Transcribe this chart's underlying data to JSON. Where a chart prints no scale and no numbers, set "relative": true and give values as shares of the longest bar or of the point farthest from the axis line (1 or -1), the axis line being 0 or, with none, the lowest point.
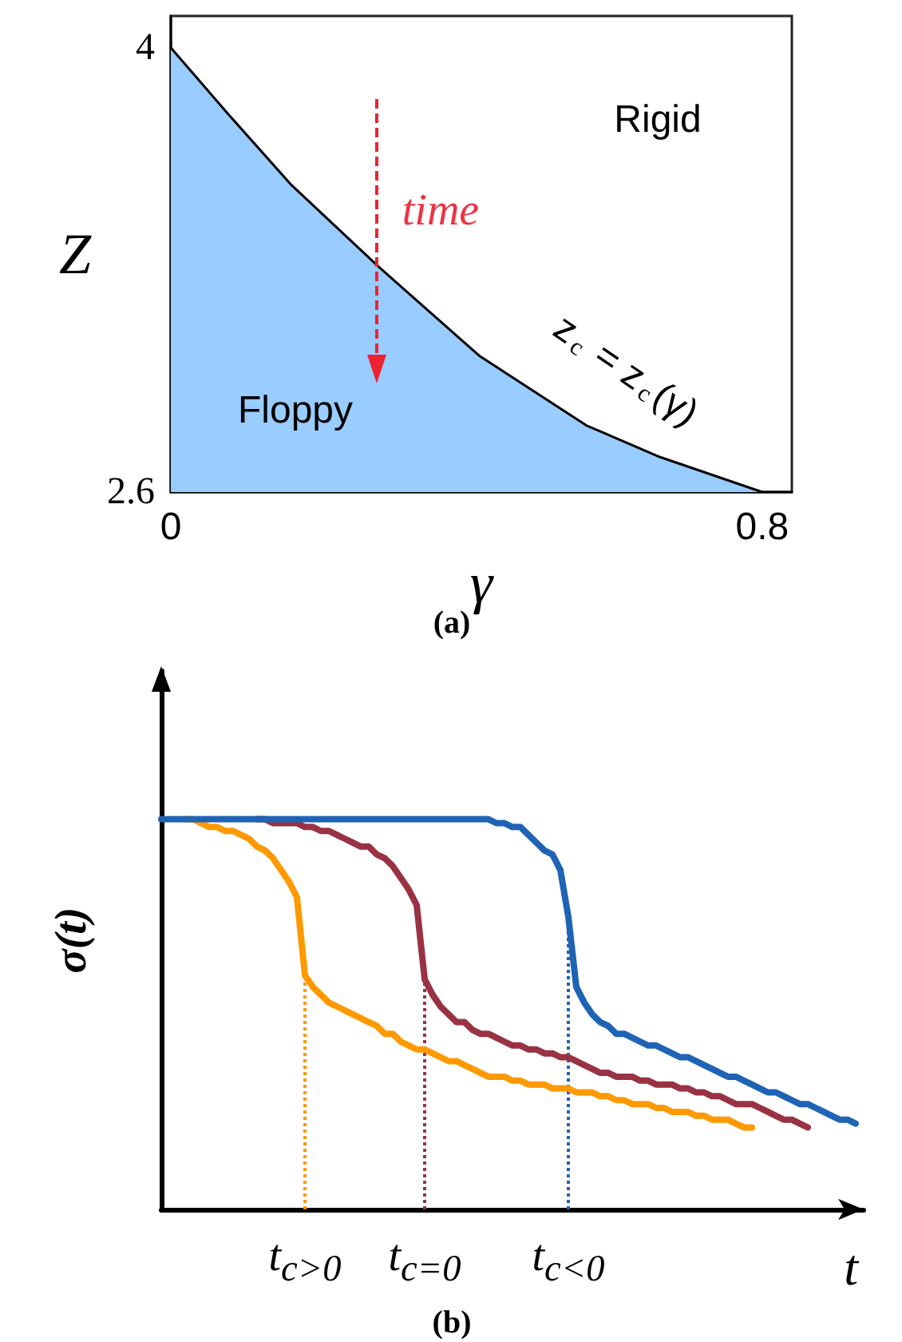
{
  "chart_data": [
    {
      "type": "area",
      "xlabel": "γ",
      "ylabel": "Z",
      "x": [
        0,
        0.078,
        0.162,
        0.281,
        0.417,
        0.562,
        0.662,
        0.8
      ],
      "series": [
        {
          "color": "#99ccff",
          "values": [
            4,
            3.79,
            3.57,
            3.31,
            3.03,
            2.81,
            2.71,
            2.6
          ]
        }
      ],
      "xlim": [
        0,
        0.84
      ],
      "ylim": [
        2.6,
        4.1
      ],
      "xticks": [
        0,
        0.8
      ],
      "yticks": [
        2.6,
        4
      ],
      "annotations": [
        "Rigid",
        "Floppy",
        "time",
        "z$_{c}$ = z$_{c}$(γ)",
        "(a)"
      ]
    },
    {
      "type": "line",
      "relative": true,
      "xlabel": "t",
      "ylabel": "σ(t)",
      "categories": [
        null,
        null,
        null,
        null,
        null,
        null,
        null,
        null,
        null,
        null,
        null,
        null,
        null,
        null,
        null,
        null,
        null,
        null,
        "t$_{c>0}$",
        null,
        null,
        null,
        null,
        null,
        null,
        null,
        null,
        null,
        null,
        null,
        null,
        null,
        null,
        "t$_{c=0}$",
        null,
        null,
        null,
        null,
        null,
        null,
        null,
        null,
        null,
        null,
        null,
        null,
        null,
        null,
        null,
        null,
        null,
        "t$_{c<0}$",
        null,
        null,
        null,
        null,
        null,
        null,
        null,
        null,
        null,
        null,
        null,
        null,
        null,
        null,
        null,
        null,
        null,
        null,
        null,
        null,
        null,
        null,
        null,
        null,
        null,
        null,
        null,
        null,
        null,
        null,
        null,
        null,
        null,
        null,
        null,
        null,
        null
      ],
      "series": [
        {
          "color": "#ff9900",
          "values": [
            null,
            null,
            null,
            1,
            1,
            0.99,
            0.98,
            0.98,
            0.97,
            0.97,
            0.96,
            0.95,
            0.93,
            0.92,
            0.9,
            0.87,
            0.84,
            0.8,
            0.6,
            0.57,
            0.55,
            0.53,
            0.52,
            0.51,
            0.5,
            0.49,
            0.48,
            0.47,
            0.45,
            0.45,
            0.43,
            0.42,
            0.41,
            0.41,
            0.4,
            0.39,
            0.38,
            0.38,
            0.37,
            0.36,
            0.35,
            0.34,
            0.34,
            0.34,
            0.33,
            0.33,
            0.32,
            0.32,
            0.32,
            0.31,
            0.31,
            0.31,
            0.3,
            0.3,
            0.3,
            0.29,
            0.29,
            0.28,
            0.28,
            0.27,
            0.27,
            0.27,
            0.26,
            0.26,
            0.25,
            0.25,
            0.25,
            0.24,
            0.24,
            0.23,
            0.23,
            0.23,
            0.22,
            0.21,
            0.21,
            null,
            null,
            null,
            null,
            null,
            null,
            null,
            null,
            null,
            null,
            null,
            null,
            null,
            null
          ]
        },
        {
          "color": "#993344",
          "values": [
            null,
            null,
            null,
            null,
            null,
            null,
            null,
            null,
            null,
            null,
            null,
            null,
            1,
            1,
            0.99,
            0.99,
            0.99,
            0.99,
            0.98,
            0.98,
            0.97,
            0.97,
            0.96,
            0.95,
            0.94,
            0.93,
            0.93,
            0.91,
            0.9,
            0.88,
            0.85,
            0.82,
            0.78,
            0.59,
            0.55,
            0.52,
            0.5,
            0.48,
            0.48,
            0.46,
            0.45,
            0.45,
            0.44,
            0.43,
            0.42,
            0.42,
            0.41,
            0.41,
            0.4,
            0.4,
            0.39,
            0.39,
            0.38,
            0.37,
            0.36,
            0.35,
            0.35,
            0.34,
            0.34,
            0.34,
            0.33,
            0.33,
            0.32,
            0.32,
            0.32,
            0.31,
            0.31,
            0.3,
            0.3,
            0.29,
            0.29,
            0.28,
            0.27,
            0.27,
            0.27,
            0.26,
            0.25,
            0.24,
            0.23,
            0.23,
            0.22,
            0.21,
            null,
            null,
            null,
            null,
            null,
            null,
            null
          ]
        },
        {
          "color": "#1f63b5",
          "values": [
            1,
            1,
            1,
            1,
            1,
            1,
            1,
            1,
            1,
            1,
            1,
            1,
            1,
            1,
            1,
            1,
            1,
            1,
            1,
            1,
            1,
            1,
            1,
            1,
            1,
            1,
            1,
            1,
            1,
            1,
            1,
            1,
            1,
            1,
            1,
            1,
            1,
            1,
            1,
            1,
            1,
            1,
            0.99,
            0.99,
            0.98,
            0.98,
            0.96,
            0.94,
            0.92,
            0.91,
            0.87,
            0.75,
            0.57,
            0.53,
            0.5,
            0.48,
            0.47,
            0.45,
            0.45,
            0.44,
            0.43,
            0.42,
            0.42,
            0.41,
            0.4,
            0.39,
            0.39,
            0.38,
            0.37,
            0.36,
            0.35,
            0.34,
            0.34,
            0.33,
            0.32,
            0.31,
            0.3,
            0.3,
            0.29,
            0.28,
            0.27,
            0.27,
            0.26,
            0.25,
            0.24,
            0.23,
            0.23,
            0.22,
            null
          ]
        }
      ],
      "ref_lines": [
        {
          "axis": "x",
          "value": "t$_{c>0}$",
          "color": "#ff9900",
          "line_style": "dotted"
        },
        {
          "axis": "x",
          "value": "t$_{c=0}$",
          "color": "#993344",
          "line_style": "dotted"
        },
        {
          "axis": "x",
          "value": "t$_{c<0}$",
          "color": "#1f63b5",
          "line_style": "dotted"
        }
      ],
      "annotations": [
        "(b)"
      ]
    }
  ]
}
